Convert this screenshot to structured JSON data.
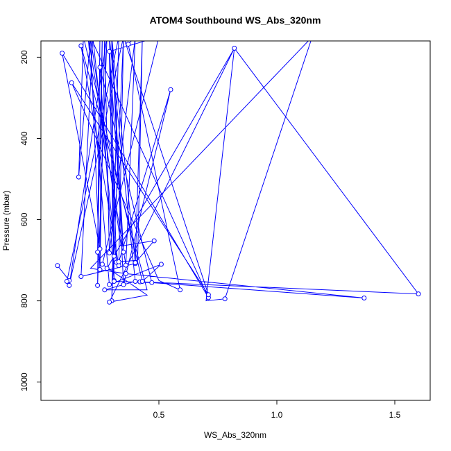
{
  "chart_data": {
    "type": "line",
    "title": "ATOM4 Southbound WS_Abs_320nm",
    "xlabel": "WS_Abs_320nm",
    "ylabel": "Pressure (mbar)",
    "xlim": [
      0.0,
      1.65
    ],
    "ylim": [
      1045,
      160
    ],
    "y_inverted": true,
    "x_ticks": [
      {
        "value": 0.5,
        "label": "0.5"
      },
      {
        "value": 1.0,
        "label": "1.0"
      },
      {
        "value": 1.5,
        "label": "1.5"
      }
    ],
    "y_ticks": [
      {
        "value": 200,
        "label": "200"
      },
      {
        "value": 400,
        "label": "400"
      },
      {
        "value": 600,
        "label": "600"
      },
      {
        "value": 800,
        "label": "800"
      },
      {
        "value": 1000,
        "label": "1000"
      }
    ],
    "series": [
      {
        "color": "#0000ff",
        "marker": "open-circle",
        "points": [
          {
            "x": 0.07,
            "y": 713,
            "marker": true
          },
          {
            "x": 0.12,
            "y": 750,
            "marker": true
          },
          {
            "x": 0.11,
            "y": 752,
            "marker": true
          },
          {
            "x": 0.33,
            "y": 150,
            "marker": false
          },
          {
            "x": 0.3,
            "y": 800,
            "marker": true
          },
          {
            "x": 0.35,
            "y": 150,
            "marker": false
          },
          {
            "x": 0.12,
            "y": 762,
            "marker": true
          },
          {
            "x": 0.28,
            "y": 150,
            "marker": false
          },
          {
            "x": 0.24,
            "y": 762,
            "marker": true
          },
          {
            "x": 0.25,
            "y": 150,
            "marker": false
          },
          {
            "x": 0.24,
            "y": 680,
            "marker": true
          },
          {
            "x": 0.26,
            "y": 150,
            "marker": false
          },
          {
            "x": 0.25,
            "y": 672,
            "marker": true
          },
          {
            "x": 0.09,
            "y": 190,
            "marker": true
          },
          {
            "x": 0.71,
            "y": 792,
            "marker": true
          },
          {
            "x": 0.21,
            "y": 150,
            "marker": false
          },
          {
            "x": 0.25,
            "y": 723,
            "marker": true
          },
          {
            "x": 0.27,
            "y": 150,
            "marker": false
          },
          {
            "x": 0.29,
            "y": 682,
            "marker": true
          },
          {
            "x": 0.4,
            "y": 150,
            "marker": false
          },
          {
            "x": 0.37,
            "y": 168,
            "marker": true
          },
          {
            "x": 0.59,
            "y": 773,
            "marker": true
          },
          {
            "x": 0.5,
            "y": 750,
            "marker": false
          },
          {
            "x": 0.13,
            "y": 263,
            "marker": true
          },
          {
            "x": 0.71,
            "y": 785,
            "marker": true
          },
          {
            "x": 0.35,
            "y": 150,
            "marker": false
          },
          {
            "x": 0.33,
            "y": 713,
            "marker": true
          },
          {
            "x": 0.17,
            "y": 172,
            "marker": true
          },
          {
            "x": 0.45,
            "y": 773,
            "marker": false
          },
          {
            "x": 0.27,
            "y": 773,
            "marker": true
          },
          {
            "x": 0.4,
            "y": 752,
            "marker": true
          },
          {
            "x": 0.29,
            "y": 150,
            "marker": false
          },
          {
            "x": 0.32,
            "y": 705,
            "marker": true
          },
          {
            "x": 0.22,
            "y": 150,
            "marker": false
          },
          {
            "x": 0.17,
            "y": 740,
            "marker": true
          },
          {
            "x": 0.4,
            "y": 708,
            "marker": true
          },
          {
            "x": 0.43,
            "y": 150,
            "marker": false
          },
          {
            "x": 0.41,
            "y": 700,
            "marker": false
          },
          {
            "x": 0.33,
            "y": 704,
            "marker": true
          },
          {
            "x": 0.55,
            "y": 280,
            "marker": true
          },
          {
            "x": 0.35,
            "y": 760,
            "marker": true
          },
          {
            "x": 0.3,
            "y": 150,
            "marker": false
          },
          {
            "x": 0.31,
            "y": 750,
            "marker": true
          },
          {
            "x": 0.25,
            "y": 225,
            "marker": true
          },
          {
            "x": 0.47,
            "y": 755,
            "marker": true
          },
          {
            "x": 0.31,
            "y": 752,
            "marker": true
          },
          {
            "x": 0.29,
            "y": 190,
            "marker": false
          },
          {
            "x": 0.31,
            "y": 690,
            "marker": true
          },
          {
            "x": 0.28,
            "y": 720,
            "marker": true
          },
          {
            "x": 0.82,
            "y": 178,
            "marker": true
          },
          {
            "x": 0.7,
            "y": 800,
            "marker": false
          },
          {
            "x": 0.78,
            "y": 795,
            "marker": true
          },
          {
            "x": 1.15,
            "y": 150,
            "marker": false
          },
          {
            "x": 0.21,
            "y": 720,
            "marker": false
          },
          {
            "x": 0.36,
            "y": 733,
            "marker": true
          },
          {
            "x": 1.37,
            "y": 793,
            "marker": true
          },
          {
            "x": 0.42,
            "y": 753,
            "marker": true
          },
          {
            "x": 1.6,
            "y": 783,
            "marker": true
          },
          {
            "x": 0.82,
            "y": 178,
            "marker": false
          },
          {
            "x": 0.29,
            "y": 803,
            "marker": true
          },
          {
            "x": 0.45,
            "y": 786,
            "marker": false
          },
          {
            "x": 0.26,
            "y": 710,
            "marker": true
          },
          {
            "x": 0.5,
            "y": 150,
            "marker": false
          },
          {
            "x": 0.29,
            "y": 186,
            "marker": true
          },
          {
            "x": 0.35,
            "y": 680,
            "marker": true
          },
          {
            "x": 0.3,
            "y": 150,
            "marker": false
          },
          {
            "x": 0.4,
            "y": 706,
            "marker": true
          },
          {
            "x": 0.48,
            "y": 652,
            "marker": true
          },
          {
            "x": 0.34,
            "y": 665,
            "marker": false
          },
          {
            "x": 0.21,
            "y": 150,
            "marker": false
          },
          {
            "x": 0.16,
            "y": 495,
            "marker": true
          },
          {
            "x": 0.18,
            "y": 150,
            "marker": false
          },
          {
            "x": 0.43,
            "y": 752,
            "marker": true
          },
          {
            "x": 0.51,
            "y": 710,
            "marker": true
          },
          {
            "x": 0.29,
            "y": 760,
            "marker": true
          },
          {
            "x": 0.2,
            "y": 150,
            "marker": false
          },
          {
            "x": 0.36,
            "y": 712,
            "marker": true
          },
          {
            "x": 0.4,
            "y": 150,
            "marker": false
          }
        ]
      }
    ]
  }
}
